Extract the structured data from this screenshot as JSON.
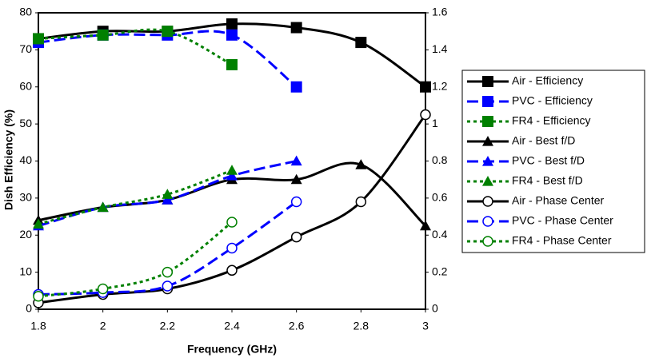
{
  "chart_data": {
    "type": "line",
    "x_label": "Frequency (GHz)",
    "y_label": "Dish Efficiency (%)",
    "x": [
      1.8,
      2,
      2.2,
      2.4,
      2.6,
      2.8,
      3
    ],
    "xlim": [
      1.8,
      3
    ],
    "xticks": [
      1.8,
      2,
      2.2,
      2.4,
      2.6,
      2.8,
      3
    ],
    "ylim": [
      0,
      80
    ],
    "yticks": [
      0,
      10,
      20,
      30,
      40,
      50,
      60,
      70,
      80
    ],
    "y2lim": [
      0,
      1.6
    ],
    "y2ticks": [
      0,
      0.2,
      0.4,
      0.6,
      0.8,
      1,
      1.2,
      1.4,
      1.6
    ],
    "legend": "right",
    "series": [
      {
        "name": "Air - Efficiency",
        "color": "#000000",
        "marker": "square",
        "dash": "solid",
        "values": [
          73,
          75,
          75,
          77,
          76,
          72,
          60
        ]
      },
      {
        "name": "PVC - Efficiency",
        "color": "#0000ff",
        "marker": "square",
        "dash": "dash",
        "values": [
          72,
          74,
          74,
          74,
          60,
          null,
          null
        ]
      },
      {
        "name": "FR4 - Efficiency",
        "color": "#008000",
        "marker": "square",
        "dash": "dot",
        "values": [
          73,
          74,
          75,
          66,
          null,
          null,
          null
        ]
      },
      {
        "name": "Air - Best f/D",
        "color": "#000000",
        "marker": "triangle",
        "dash": "solid",
        "axis": "y2",
        "values": [
          0.48,
          0.55,
          0.59,
          0.7,
          0.7,
          0.78,
          0.45
        ]
      },
      {
        "name": "PVC - Best f/D",
        "color": "#0000ff",
        "marker": "triangle",
        "dash": "dash",
        "axis": "y2",
        "values": [
          0.45,
          0.55,
          0.59,
          0.72,
          0.8,
          null,
          null
        ]
      },
      {
        "name": "FR4 - Best f/D",
        "color": "#008000",
        "marker": "triangle",
        "dash": "dot",
        "axis": "y2",
        "values": [
          0.46,
          0.55,
          0.62,
          0.75,
          null,
          null,
          null
        ]
      },
      {
        "name": "Air - Phase Center",
        "color": "#000000",
        "marker": "circle",
        "dash": "solid",
        "axis": "y2",
        "values": [
          0.035,
          0.08,
          0.11,
          0.21,
          0.39,
          0.58,
          1.05
        ]
      },
      {
        "name": "PVC - Phase Center",
        "color": "#0000ff",
        "marker": "circle",
        "dash": "dash",
        "axis": "y2",
        "values": [
          0.08,
          0.09,
          0.125,
          0.33,
          0.58,
          null,
          null
        ]
      },
      {
        "name": "FR4 - Phase Center",
        "color": "#008000",
        "marker": "circle",
        "dash": "dot",
        "axis": "y2",
        "values": [
          0.07,
          0.11,
          0.2,
          0.47,
          null,
          null,
          null
        ]
      }
    ]
  }
}
